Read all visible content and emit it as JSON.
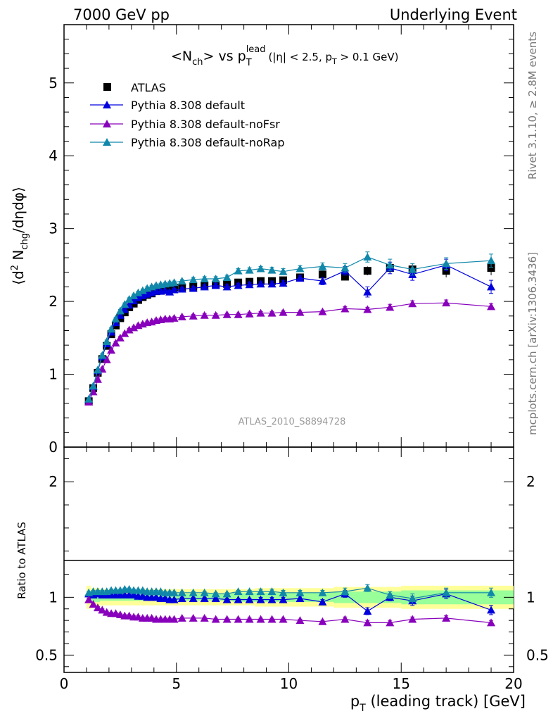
{
  "header": {
    "left": "7000 GeV pp",
    "right": "Underlying Event"
  },
  "plot_title": {
    "n": "N",
    "n_sub": "ch",
    "vs": "> vs p",
    "lead_sup": "lead",
    "lead_sub": "T",
    "cut": "(|η| < 2.5, p",
    "cut_sub": "T",
    "cut_end": " > 0.1 GeV)"
  },
  "side_labels": {
    "rivet": "Rivet 3.1.10, ≥ 2.8M events",
    "mcplots": "mcplots.cern.ch [arXiv:1306.3436]"
  },
  "watermark": "ATLAS_2010_S8894728",
  "ylabel_main": {
    "a": "⟨d",
    "sup": "2",
    "b": " N",
    "sub": "chg",
    "c": "/dηdφ⟩"
  },
  "ylabel_ratio": "Ratio to ATLAS",
  "xlabel": {
    "p": "p",
    "sub": "T",
    "rest": " (leading track) [GeV]"
  },
  "colors": {
    "atlas": "#000000",
    "default": "#0000dd",
    "noFsr": "#8800bb",
    "noRap": "#1188aa",
    "band_outer": "#ffff99",
    "band_inner": "#99ff99"
  },
  "chart_data": {
    "type": "scatter",
    "xlim": [
      0,
      20
    ],
    "ylim_main": [
      0,
      5.8
    ],
    "ylim_ratio": [
      0.35,
      2.3
    ],
    "x_ticks": [
      0,
      5,
      10,
      15,
      20
    ],
    "y_ticks_main": [
      0,
      1,
      2,
      3,
      4,
      5
    ],
    "y_ticks_ratio": [
      0.5,
      1,
      2
    ],
    "x": [
      1.1,
      1.3,
      1.5,
      1.7,
      1.9,
      2.1,
      2.3,
      2.5,
      2.7,
      2.9,
      3.1,
      3.3,
      3.5,
      3.7,
      3.9,
      4.1,
      4.3,
      4.5,
      4.7,
      4.9,
      5.25,
      5.75,
      6.25,
      6.75,
      7.25,
      7.75,
      8.25,
      8.75,
      9.25,
      9.75,
      10.5,
      11.5,
      12.5,
      13.5,
      14.5,
      15.5,
      17.0,
      19.0
    ],
    "series": [
      {
        "name": "ATLAS",
        "marker": "square",
        "values": [
          0.63,
          0.81,
          1.02,
          1.21,
          1.39,
          1.55,
          1.67,
          1.77,
          1.85,
          1.92,
          1.97,
          2.02,
          2.06,
          2.09,
          2.11,
          2.14,
          2.15,
          2.17,
          2.18,
          2.19,
          2.19,
          2.2,
          2.21,
          2.23,
          2.24,
          2.26,
          2.27,
          2.28,
          2.28,
          2.29,
          2.33,
          2.37,
          2.34,
          2.42,
          2.46,
          2.44,
          2.42,
          2.46
        ],
        "errors": [
          0.02,
          0.02,
          0.02,
          0.02,
          0.02,
          0.02,
          0.02,
          0.02,
          0.02,
          0.02,
          0.02,
          0.02,
          0.02,
          0.02,
          0.02,
          0.02,
          0.02,
          0.02,
          0.02,
          0.02,
          0.02,
          0.02,
          0.02,
          0.02,
          0.02,
          0.02,
          0.03,
          0.03,
          0.03,
          0.03,
          0.04,
          0.04,
          0.05,
          0.06,
          0.07,
          0.08,
          0.09,
          0.1
        ]
      },
      {
        "name": "Pythia 8.308 default",
        "marker": "triangle",
        "values": [
          0.65,
          0.83,
          1.05,
          1.24,
          1.42,
          1.58,
          1.71,
          1.81,
          1.89,
          1.95,
          2.01,
          2.05,
          2.08,
          2.1,
          2.12,
          2.14,
          2.14,
          2.15,
          2.13,
          2.16,
          2.17,
          2.18,
          2.2,
          2.22,
          2.2,
          2.22,
          2.23,
          2.24,
          2.24,
          2.25,
          2.32,
          2.28,
          2.42,
          2.13,
          2.46,
          2.37,
          2.5,
          2.2
        ],
        "errors": [
          0.02,
          0.02,
          0.02,
          0.02,
          0.02,
          0.02,
          0.02,
          0.02,
          0.02,
          0.02,
          0.02,
          0.02,
          0.02,
          0.02,
          0.02,
          0.02,
          0.02,
          0.02,
          0.02,
          0.02,
          0.02,
          0.03,
          0.03,
          0.03,
          0.03,
          0.03,
          0.03,
          0.03,
          0.04,
          0.04,
          0.04,
          0.05,
          0.06,
          0.07,
          0.08,
          0.08,
          0.08,
          0.09
        ],
        "ratio": [
          1.03,
          1.02,
          1.03,
          1.02,
          1.02,
          1.02,
          1.02,
          1.02,
          1.02,
          1.02,
          1.02,
          1.01,
          1.01,
          1.0,
          1.0,
          1.0,
          0.99,
          0.99,
          0.98,
          0.98,
          0.99,
          0.99,
          0.99,
          0.99,
          0.98,
          0.98,
          0.98,
          0.98,
          0.98,
          0.98,
          0.99,
          0.96,
          1.03,
          0.88,
          1.0,
          0.97,
          1.03,
          0.89
        ],
        "ratio_errors": [
          0.01,
          0.01,
          0.01,
          0.01,
          0.01,
          0.01,
          0.01,
          0.01,
          0.01,
          0.01,
          0.01,
          0.01,
          0.01,
          0.01,
          0.01,
          0.01,
          0.01,
          0.01,
          0.01,
          0.01,
          0.01,
          0.01,
          0.01,
          0.01,
          0.01,
          0.01,
          0.01,
          0.02,
          0.02,
          0.02,
          0.02,
          0.02,
          0.03,
          0.03,
          0.03,
          0.04,
          0.04,
          0.04
        ]
      },
      {
        "name": "Pythia 8.308 default-noFsr",
        "marker": "triangle",
        "values": [
          0.62,
          0.76,
          0.93,
          1.07,
          1.2,
          1.33,
          1.43,
          1.5,
          1.56,
          1.61,
          1.64,
          1.67,
          1.69,
          1.71,
          1.72,
          1.74,
          1.75,
          1.76,
          1.76,
          1.77,
          1.79,
          1.8,
          1.81,
          1.81,
          1.82,
          1.82,
          1.83,
          1.84,
          1.84,
          1.85,
          1.85,
          1.86,
          1.9,
          1.89,
          1.92,
          1.97,
          1.98,
          1.93
        ],
        "errors": [
          0.02,
          0.02,
          0.02,
          0.02,
          0.02,
          0.02,
          0.02,
          0.02,
          0.02,
          0.02,
          0.02,
          0.02,
          0.02,
          0.02,
          0.02,
          0.02,
          0.02,
          0.02,
          0.02,
          0.02,
          0.02,
          0.02,
          0.02,
          0.02,
          0.02,
          0.02,
          0.02,
          0.02,
          0.02,
          0.02,
          0.02,
          0.02,
          0.03,
          0.03,
          0.04,
          0.04,
          0.04,
          0.04
        ],
        "ratio": [
          0.98,
          0.94,
          0.91,
          0.89,
          0.87,
          0.86,
          0.86,
          0.85,
          0.84,
          0.84,
          0.83,
          0.83,
          0.82,
          0.82,
          0.82,
          0.81,
          0.81,
          0.81,
          0.81,
          0.81,
          0.82,
          0.82,
          0.82,
          0.81,
          0.81,
          0.81,
          0.81,
          0.81,
          0.81,
          0.81,
          0.8,
          0.79,
          0.81,
          0.78,
          0.78,
          0.81,
          0.82,
          0.78
        ],
        "ratio_errors": [
          0.01,
          0.01,
          0.01,
          0.01,
          0.01,
          0.01,
          0.01,
          0.01,
          0.01,
          0.01,
          0.01,
          0.01,
          0.01,
          0.01,
          0.01,
          0.01,
          0.01,
          0.01,
          0.01,
          0.01,
          0.01,
          0.01,
          0.01,
          0.01,
          0.01,
          0.01,
          0.01,
          0.01,
          0.01,
          0.01,
          0.01,
          0.01,
          0.02,
          0.02,
          0.02,
          0.02,
          0.02,
          0.02
        ]
      },
      {
        "name": "Pythia 8.308 default-noRap",
        "marker": "triangle",
        "values": [
          0.66,
          0.84,
          1.06,
          1.26,
          1.45,
          1.62,
          1.76,
          1.87,
          1.96,
          2.03,
          2.08,
          2.12,
          2.15,
          2.18,
          2.2,
          2.22,
          2.23,
          2.24,
          2.25,
          2.26,
          2.28,
          2.3,
          2.31,
          2.31,
          2.33,
          2.42,
          2.43,
          2.45,
          2.43,
          2.41,
          2.45,
          2.48,
          2.46,
          2.61,
          2.5,
          2.44,
          2.52,
          2.56
        ],
        "errors": [
          0.02,
          0.02,
          0.02,
          0.02,
          0.02,
          0.02,
          0.02,
          0.02,
          0.02,
          0.02,
          0.02,
          0.02,
          0.02,
          0.02,
          0.02,
          0.02,
          0.02,
          0.02,
          0.02,
          0.02,
          0.02,
          0.03,
          0.03,
          0.03,
          0.03,
          0.03,
          0.03,
          0.03,
          0.04,
          0.04,
          0.04,
          0.05,
          0.06,
          0.07,
          0.08,
          0.08,
          0.08,
          0.09
        ],
        "ratio": [
          1.04,
          1.05,
          1.05,
          1.05,
          1.05,
          1.06,
          1.06,
          1.06,
          1.07,
          1.07,
          1.06,
          1.06,
          1.06,
          1.05,
          1.05,
          1.05,
          1.05,
          1.04,
          1.04,
          1.04,
          1.04,
          1.04,
          1.04,
          1.03,
          1.03,
          1.05,
          1.05,
          1.05,
          1.05,
          1.04,
          1.04,
          1.04,
          1.05,
          1.08,
          1.02,
          0.99,
          1.04,
          1.04
        ],
        "ratio_errors": [
          0.01,
          0.01,
          0.01,
          0.01,
          0.01,
          0.01,
          0.01,
          0.01,
          0.01,
          0.01,
          0.01,
          0.01,
          0.01,
          0.01,
          0.01,
          0.01,
          0.01,
          0.01,
          0.01,
          0.01,
          0.01,
          0.01,
          0.01,
          0.01,
          0.01,
          0.01,
          0.01,
          0.02,
          0.02,
          0.02,
          0.02,
          0.02,
          0.03,
          0.03,
          0.03,
          0.04,
          0.04,
          0.04
        ]
      }
    ],
    "ratio_band": {
      "inner": [
        0.05,
        0.04,
        0.04,
        0.03,
        0.03,
        0.03,
        0.03,
        0.03,
        0.03,
        0.03,
        0.03,
        0.03,
        0.03,
        0.03,
        0.03,
        0.03,
        0.03,
        0.03,
        0.03,
        0.03,
        0.03,
        0.03,
        0.03,
        0.03,
        0.03,
        0.04,
        0.04,
        0.04,
        0.04,
        0.04,
        0.04,
        0.04,
        0.05,
        0.05,
        0.05,
        0.06,
        0.06,
        0.06
      ],
      "outer": [
        0.1,
        0.08,
        0.08,
        0.07,
        0.07,
        0.07,
        0.07,
        0.07,
        0.07,
        0.07,
        0.07,
        0.07,
        0.07,
        0.07,
        0.07,
        0.07,
        0.07,
        0.07,
        0.07,
        0.07,
        0.07,
        0.07,
        0.07,
        0.07,
        0.07,
        0.07,
        0.07,
        0.08,
        0.08,
        0.08,
        0.08,
        0.08,
        0.09,
        0.09,
        0.09,
        0.1,
        0.1,
        0.1
      ]
    }
  }
}
